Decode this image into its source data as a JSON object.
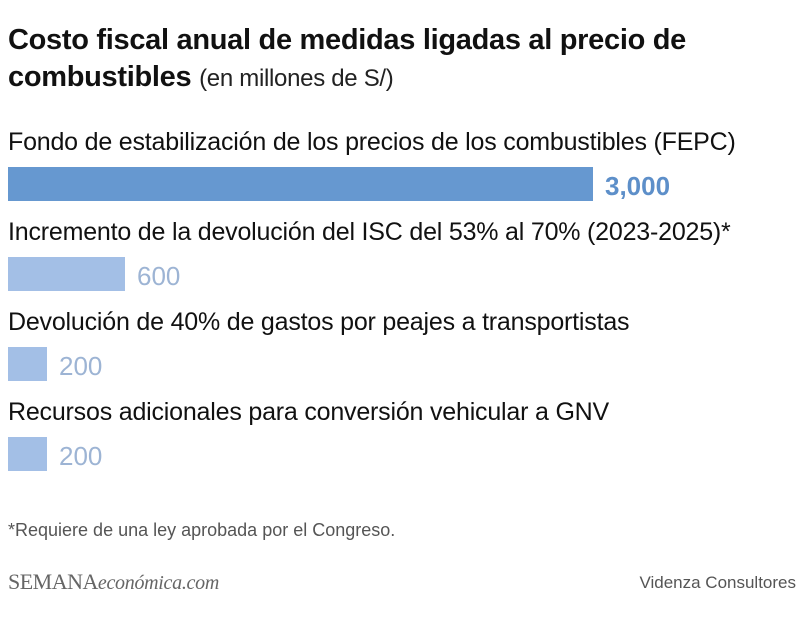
{
  "title": {
    "main": "Costo fiscal anual de medidas ligadas al precio de combustibles",
    "sub": "(en millones de S/)"
  },
  "chart_data": {
    "type": "bar",
    "orientation": "horizontal",
    "categories": [
      "Fondo de estabilización de los precios de los combustibles (FEPC)",
      "Incremento de la devolución del ISC del 53% al 70% (2023-2025)*",
      "Devolución de 40% de gastos por peajes a transportistas",
      "Recursos adicionales para conversión vehicular a GNV"
    ],
    "values": [
      3000,
      600,
      200,
      200
    ],
    "value_labels": [
      "3,000",
      "600",
      "200",
      "200"
    ],
    "xlim": [
      0,
      3000
    ],
    "colors": {
      "highlight_bar": "#6698d0",
      "highlight_label": "#5d8fc9",
      "bar": "#a3bfe6",
      "label": "#9db4d4"
    },
    "grid": false,
    "legend": "none"
  },
  "footnote": "*Requiere de una ley aprobada por el Congreso.",
  "logo": {
    "part1": "SEMANA",
    "part2": "económica.com"
  },
  "source": "Videnza Consultores"
}
